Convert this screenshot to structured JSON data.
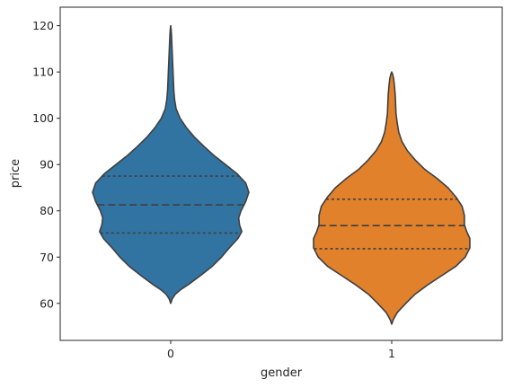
{
  "chart_data": {
    "type": "violin",
    "xlabel": "gender",
    "ylabel": "price",
    "categories": [
      "0",
      "1"
    ],
    "ylim": [
      52.0,
      124.0
    ],
    "yticks": [
      60,
      70,
      80,
      90,
      100,
      110,
      120
    ],
    "grid": false,
    "legend": "none",
    "colors": [
      "#3274a1",
      "#e1812c"
    ],
    "violins": [
      {
        "category": "0",
        "min": 60.0,
        "max": 120.0,
        "q1": 75.2,
        "median": 81.3,
        "q3": 87.5,
        "density": [
          [
            60.0,
            0.0
          ],
          [
            61.0,
            0.02
          ],
          [
            62.0,
            0.06
          ],
          [
            63.0,
            0.13
          ],
          [
            64.0,
            0.22
          ],
          [
            66.0,
            0.38
          ],
          [
            68.0,
            0.53
          ],
          [
            70.0,
            0.65
          ],
          [
            72.0,
            0.75
          ],
          [
            74.0,
            0.86
          ],
          [
            75.5,
            0.91
          ],
          [
            77.0,
            0.88
          ],
          [
            78.5,
            0.87
          ],
          [
            80.0,
            0.9
          ],
          [
            82.0,
            0.96
          ],
          [
            84.0,
            1.0
          ],
          [
            86.0,
            0.96
          ],
          [
            88.0,
            0.85
          ],
          [
            90.0,
            0.7
          ],
          [
            92.0,
            0.55
          ],
          [
            94.0,
            0.42
          ],
          [
            96.0,
            0.3
          ],
          [
            98.0,
            0.2
          ],
          [
            100.0,
            0.12
          ],
          [
            102.0,
            0.07
          ],
          [
            104.0,
            0.05
          ],
          [
            106.0,
            0.04
          ],
          [
            108.0,
            0.035
          ],
          [
            110.0,
            0.03
          ],
          [
            112.0,
            0.025
          ],
          [
            114.0,
            0.02
          ],
          [
            116.0,
            0.015
          ],
          [
            118.0,
            0.01
          ],
          [
            119.0,
            0.006
          ],
          [
            120.0,
            0.0
          ]
        ]
      },
      {
        "category": "1",
        "min": 55.5,
        "max": 110.0,
        "q1": 71.8,
        "median": 76.8,
        "q3": 82.5,
        "density": [
          [
            55.5,
            0.0
          ],
          [
            56.5,
            0.02
          ],
          [
            58.0,
            0.07
          ],
          [
            60.0,
            0.18
          ],
          [
            62.0,
            0.3
          ],
          [
            64.0,
            0.46
          ],
          [
            66.0,
            0.64
          ],
          [
            68.0,
            0.82
          ],
          [
            70.0,
            0.94
          ],
          [
            72.0,
            1.0
          ],
          [
            74.0,
            1.0
          ],
          [
            75.5,
            0.96
          ],
          [
            77.0,
            0.93
          ],
          [
            79.0,
            0.93
          ],
          [
            81.0,
            0.9
          ],
          [
            83.0,
            0.82
          ],
          [
            85.0,
            0.72
          ],
          [
            87.0,
            0.58
          ],
          [
            89.0,
            0.42
          ],
          [
            91.0,
            0.3
          ],
          [
            93.0,
            0.2
          ],
          [
            95.0,
            0.13
          ],
          [
            97.0,
            0.09
          ],
          [
            99.0,
            0.07
          ],
          [
            101.0,
            0.055
          ],
          [
            103.0,
            0.05
          ],
          [
            105.0,
            0.045
          ],
          [
            107.0,
            0.035
          ],
          [
            108.5,
            0.025
          ],
          [
            109.5,
            0.012
          ],
          [
            110.0,
            0.0
          ]
        ]
      }
    ]
  }
}
